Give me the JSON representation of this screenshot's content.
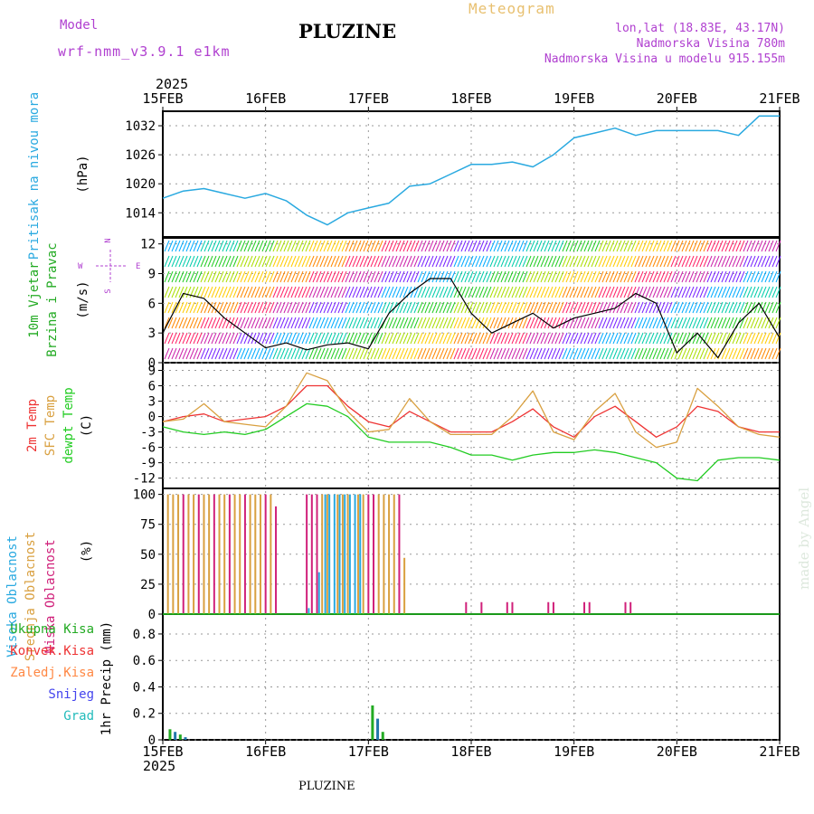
{
  "header": {
    "model_label": "Model",
    "model_name": "wrf-nmm_v3.9.1 e1km",
    "title": "PLUZINE",
    "meteogram_label": "Meteogram",
    "coords": "lon,lat (18.83E, 43.17N)",
    "altitude": "Nadmorska Visina 780m",
    "model_altitude": "Nadmorska Visina u modelu 915.155m",
    "year_top": "2025",
    "year_bottom": "2025",
    "footer_station": "PLUZINE",
    "credit": "made by Angel"
  },
  "colors": {
    "pressure": "#29a9e0",
    "wind_label": "#22aa22",
    "temp2m": "#ee3333",
    "sfc": "#d9a040",
    "dew": "#22cc22",
    "high_cloud": "#29a9e0",
    "mid_cloud": "#d9a040",
    "low_cloud": "#d0207a",
    "purple_text": "#b040d0",
    "gold_text": "#e8c070"
  },
  "icons": {
    "wind_compass": "compass-rose-icon"
  },
  "chart_data": [
    {
      "type": "line",
      "name": "pressure",
      "ylabel_left": "Pritisak na nivou mora",
      "ylabel_unit": "(hPa)",
      "x_ticks": [
        "15FEB",
        "16FEB",
        "17FEB",
        "18FEB",
        "19FEB",
        "20FEB",
        "21FEB"
      ],
      "ylim": [
        1009,
        1035
      ],
      "yticks": [
        1014,
        1020,
        1026,
        1032
      ],
      "grid": true,
      "x_days": [
        0,
        0.2,
        0.4,
        0.6,
        0.8,
        1.0,
        1.2,
        1.4,
        1.6,
        1.8,
        2.0,
        2.2,
        2.4,
        2.6,
        2.8,
        3.0,
        3.2,
        3.4,
        3.6,
        3.8,
        4.0,
        4.2,
        4.4,
        4.6,
        4.8,
        5.0,
        5.2,
        5.4,
        5.6,
        5.8,
        6.0
      ],
      "values": [
        1017,
        1018.5,
        1019,
        1018,
        1017,
        1018,
        1016.5,
        1013.5,
        1011.5,
        1014,
        1015,
        1016,
        1019.5,
        1020,
        1022,
        1024,
        1024,
        1024.5,
        1023.5,
        1026,
        1029.5,
        1030.5,
        1031.5,
        1030,
        1031,
        1031,
        1031,
        1031,
        1030,
        1034,
        1034
      ]
    },
    {
      "type": "line",
      "name": "wind",
      "ylabel_left1": "10m Vjetar",
      "ylabel_left2": "Brzina i Pravac",
      "ylabel_unit": "(m/s)",
      "compass": {
        "n": "N",
        "s": "S",
        "w": "W",
        "e": "E"
      },
      "ylim": [
        0,
        12.7
      ],
      "yticks": [
        0,
        3,
        6,
        9,
        12
      ],
      "x_days": [
        0,
        0.2,
        0.4,
        0.6,
        0.8,
        1.0,
        1.2,
        1.4,
        1.6,
        1.8,
        2.0,
        2.2,
        2.4,
        2.6,
        2.8,
        3.0,
        3.2,
        3.4,
        3.6,
        3.8,
        4.0,
        4.2,
        4.4,
        4.6,
        4.8,
        5.0,
        5.2,
        5.4,
        5.6,
        5.8,
        6.0
      ],
      "values": [
        3,
        7,
        6.5,
        4.5,
        3,
        1.5,
        2,
        1.3,
        1.8,
        2,
        1.4,
        5,
        7,
        8.5,
        8.5,
        5,
        3,
        4,
        5,
        3.5,
        4.5,
        5,
        5.5,
        7,
        6,
        1,
        3,
        0.5,
        4,
        6,
        2.5
      ]
    },
    {
      "type": "line",
      "name": "temperature",
      "ylabel_left1": "2m Temp",
      "ylabel_left2": "SFC Temp",
      "ylabel_left3": "dewpt Temp",
      "ylabel_unit": "(C)",
      "ylim": [
        -14,
        10.5
      ],
      "yticks": [
        -12,
        -9,
        -6,
        -3,
        0,
        3,
        6,
        9
      ],
      "series": [
        {
          "key": "temp2m",
          "x_days": [
            0,
            0.2,
            0.4,
            0.6,
            0.8,
            1.0,
            1.2,
            1.4,
            1.6,
            1.8,
            2.0,
            2.2,
            2.4,
            2.6,
            2.8,
            3.0,
            3.2,
            3.4,
            3.6,
            3.8,
            4.0,
            4.2,
            4.4,
            4.6,
            4.8,
            5.0,
            5.2,
            5.4,
            5.6,
            5.8,
            6.0
          ],
          "values": [
            -1,
            0,
            0.5,
            -1,
            -0.5,
            0,
            2,
            6,
            6,
            2,
            -1,
            -2,
            1,
            -1,
            -3,
            -3,
            -3,
            -1,
            1.5,
            -2,
            -4,
            0,
            2,
            -1,
            -4,
            -2,
            2,
            1,
            -2,
            -3,
            -3
          ]
        },
        {
          "key": "sfc",
          "x_days": [
            0,
            0.2,
            0.4,
            0.6,
            0.8,
            1.0,
            1.2,
            1.4,
            1.6,
            1.8,
            2.0,
            2.2,
            2.4,
            2.6,
            2.8,
            3.0,
            3.2,
            3.4,
            3.6,
            3.8,
            4.0,
            4.2,
            4.4,
            4.6,
            4.8,
            5.0,
            5.2,
            5.4,
            5.6,
            5.8,
            6.0
          ],
          "values": [
            -1,
            -0.5,
            2.5,
            -1,
            -1.5,
            -2,
            2,
            8.5,
            7,
            1,
            -3,
            -2.5,
            3.5,
            -1,
            -3.5,
            -3.5,
            -3.5,
            0,
            5,
            -3,
            -4.5,
            1,
            4.5,
            -3,
            -6,
            -5,
            5.5,
            2,
            -2,
            -3.5,
            -4
          ]
        },
        {
          "key": "dew",
          "x_days": [
            0,
            0.2,
            0.4,
            0.6,
            0.8,
            1.0,
            1.2,
            1.4,
            1.6,
            1.8,
            2.0,
            2.2,
            2.4,
            2.6,
            2.8,
            3.0,
            3.2,
            3.4,
            3.6,
            3.8,
            4.0,
            4.2,
            4.4,
            4.6,
            4.8,
            5.0,
            5.2,
            5.4,
            5.6,
            5.8,
            6.0
          ],
          "values": [
            -2,
            -3,
            -3.5,
            -3,
            -3.5,
            -2.5,
            0,
            2.5,
            2,
            0,
            -4,
            -5,
            -5,
            -5,
            -6,
            -7.5,
            -7.5,
            -8.5,
            -7.5,
            -7,
            -7,
            -6.5,
            -7,
            -8,
            -9,
            -12,
            -12.5,
            -8.5,
            -8,
            -8,
            -8.5
          ]
        }
      ]
    },
    {
      "type": "bar",
      "name": "clouds",
      "ylabel_left1": "Visoka Oblacnost",
      "ylabel_left2": "Srednja Oblacnost",
      "ylabel_left3": "Niska Oblacnost",
      "ylabel_unit": "(%)",
      "ylim": [
        0,
        105
      ],
      "yticks": [
        0,
        25,
        50,
        75,
        100
      ],
      "low": {
        "x_days": [
          0.2,
          0.35,
          0.5,
          0.65,
          0.8,
          1.0,
          1.1,
          1.4,
          1.45,
          1.5,
          2.0,
          2.05,
          2.3,
          2.95,
          3.1,
          3.35,
          3.4,
          3.75,
          3.8,
          4.1,
          4.15,
          4.5,
          4.55
        ],
        "values": [
          100,
          100,
          100,
          100,
          100,
          100,
          90,
          100,
          100,
          100,
          100,
          100,
          100,
          10,
          10,
          10,
          10,
          10,
          10,
          10,
          10,
          10,
          10
        ]
      },
      "mid": {
        "x_days": [
          0.05,
          0.1,
          0.15,
          0.25,
          0.3,
          0.4,
          0.45,
          0.55,
          0.6,
          0.7,
          0.75,
          0.85,
          0.9,
          0.95,
          1.05,
          1.5,
          1.55,
          1.6,
          1.7,
          1.75,
          1.8,
          1.9,
          1.95,
          2.1,
          2.15,
          2.2,
          2.25,
          2.35
        ],
        "values": [
          100,
          100,
          100,
          100,
          100,
          100,
          100,
          100,
          100,
          100,
          100,
          100,
          100,
          100,
          100,
          100,
          100,
          100,
          100,
          100,
          100,
          100,
          100,
          100,
          100,
          100,
          100,
          47
        ]
      },
      "high": {
        "x_days": [
          1.42,
          1.52,
          1.58,
          1.62,
          1.67,
          1.72,
          1.77,
          1.82,
          1.87,
          1.92
        ],
        "values": [
          5,
          35,
          100,
          100,
          100,
          100,
          100,
          100,
          100,
          100
        ]
      }
    },
    {
      "type": "bar",
      "name": "precip",
      "ylabel_left": "1hr Precip (mm)",
      "legend": [
        {
          "key": "total",
          "label": "Ukupna Kisa",
          "color": "#22aa22"
        },
        {
          "key": "conv",
          "label": "Konvek.Kisa",
          "color": "#ee3333"
        },
        {
          "key": "frz",
          "label": "Zaledj.Kisa",
          "color": "#ff8844"
        },
        {
          "key": "snow",
          "label": "Snijeg",
          "color": "#4444ee"
        },
        {
          "key": "hail",
          "label": "Grad",
          "color": "#22bbbb"
        }
      ],
      "ylim": [
        0,
        0.95
      ],
      "yticks": [
        0,
        0.2,
        0.4,
        0.6,
        0.8
      ],
      "x_days": [
        0.07,
        0.12,
        0.17,
        0.22,
        2.04,
        2.09,
        2.14
      ],
      "values": [
        0.08,
        0.06,
        0.04,
        0.02,
        0.26,
        0.16,
        0.06
      ]
    }
  ]
}
